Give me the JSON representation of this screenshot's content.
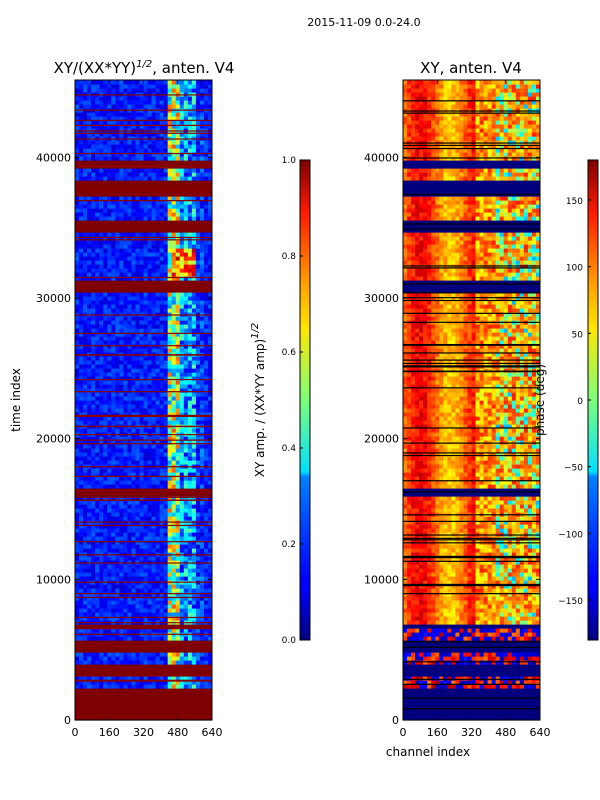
{
  "figure_title": "2015-11-09 0.0-24.0",
  "chart_data": [
    {
      "type": "heatmap",
      "title_main": "XY/(XX*YY)",
      "title_exponent": "1/2",
      "title_suffix": ", anten. V4",
      "xlabel": "",
      "ylabel": "time index",
      "xlim": [
        0,
        640
      ],
      "ylim": [
        0,
        45500
      ],
      "xticks": [
        0,
        160,
        320,
        480,
        640
      ],
      "yticks": [
        0,
        10000,
        20000,
        30000,
        40000
      ],
      "colorbar": {
        "label_main": "XY amp. / (XX*YY amp)",
        "label_exponent": "1/2",
        "range": [
          0.0,
          1.0
        ],
        "ticks": [
          "0.0",
          "0.2",
          "0.4",
          "0.6",
          "0.8",
          "1.0"
        ],
        "colormap": "jet"
      }
    },
    {
      "type": "heatmap",
      "title": "XY, anten. V4",
      "xlabel": "channel index",
      "ylabel": "",
      "xlim": [
        0,
        640
      ],
      "ylim": [
        0,
        45500
      ],
      "xticks": [
        0,
        160,
        320,
        480,
        640
      ],
      "yticks": [
        0,
        10000,
        20000,
        30000,
        40000
      ],
      "colorbar": {
        "label": "phase (deg)",
        "range": [
          -180,
          180
        ],
        "ticks": [
          "150",
          "100",
          "50",
          "0",
          "−50",
          "−100",
          "−150"
        ],
        "tick_values": [
          150,
          100,
          50,
          0,
          -50,
          -100,
          -150
        ],
        "colormap": "jet"
      }
    }
  ]
}
